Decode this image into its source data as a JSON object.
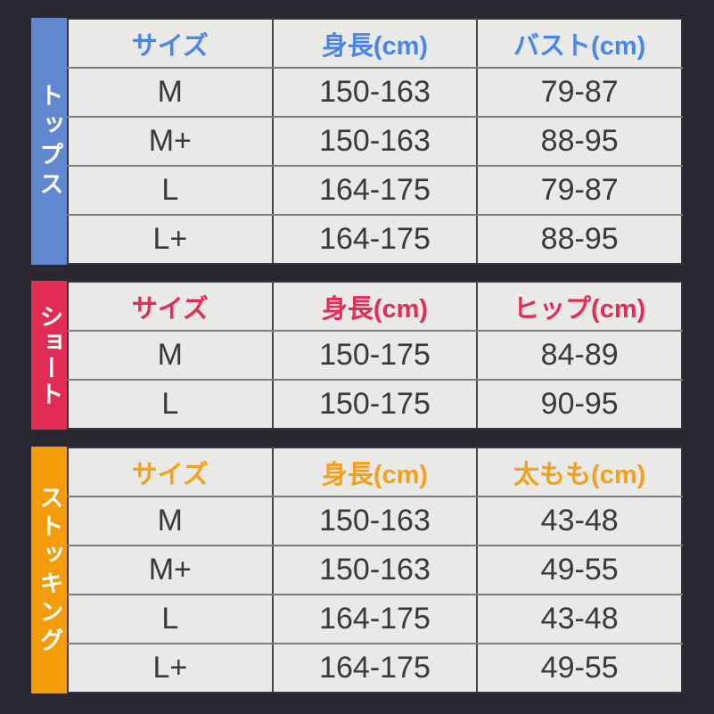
{
  "page": {
    "background": "#2a2730"
  },
  "tables": [
    {
      "id": "tops",
      "sidebar_label": "トップス",
      "accent_color": "#5f88cf",
      "header_text_color": "#4a86e8",
      "headers": [
        "サイズ",
        "身長(cm)",
        "バスト(cm)"
      ],
      "rows": [
        [
          "M",
          "150-163",
          "79-87"
        ],
        [
          "M+",
          "150-163",
          "88-95"
        ],
        [
          "L",
          "164-175",
          "79-87"
        ],
        [
          "L+",
          "164-175",
          "88-95"
        ]
      ]
    },
    {
      "id": "shorts",
      "sidebar_label": "ショート",
      "accent_color": "#e22c53",
      "header_text_color": "#e72b57",
      "headers": [
        "サイズ",
        "身長(cm)",
        "ヒップ(cm)"
      ],
      "rows": [
        [
          "M",
          "150-175",
          "84-89"
        ],
        [
          "L",
          "150-175",
          "90-95"
        ]
      ]
    },
    {
      "id": "stockings",
      "sidebar_label": "ストッキング",
      "accent_color": "#f49c05",
      "header_text_color": "#f5a01a",
      "headers": [
        "サイズ",
        "身長(cm)",
        "太もも(cm)"
      ],
      "rows": [
        [
          "M",
          "150-163",
          "43-48"
        ],
        [
          "M+",
          "150-163",
          "49-55"
        ],
        [
          "L",
          "164-175",
          "43-48"
        ],
        [
          "L+",
          "164-175",
          "49-55"
        ]
      ]
    }
  ]
}
